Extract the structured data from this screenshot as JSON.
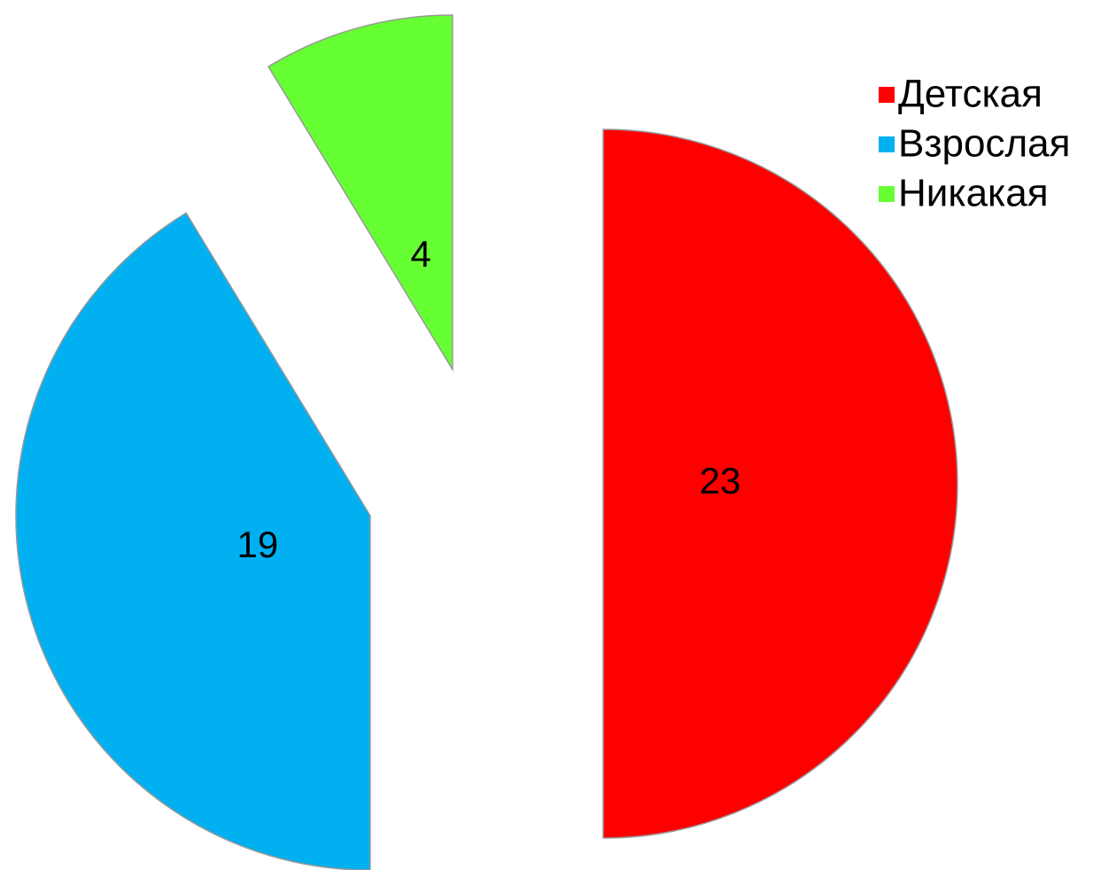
{
  "chart_data": {
    "type": "pie",
    "categories": [
      "Детская",
      "Взрослая",
      "Никакая"
    ],
    "values": [
      23,
      19,
      4
    ],
    "colors": [
      "#ff0000",
      "#00b0f0",
      "#66ff33"
    ],
    "exploded": true,
    "legend": "top-right"
  }
}
